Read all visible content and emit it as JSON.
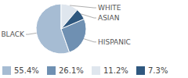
{
  "chart_data": {
    "type": "pie",
    "categories": [
      "BLACK",
      "HISPANIC",
      "WHITE",
      "ASIAN"
    ],
    "values": [
      55.4,
      26.1,
      11.2,
      7.3
    ],
    "value_labels": [
      "55.4%",
      "26.1%",
      "11.2%",
      "7.3%"
    ],
    "colors": [
      "#a6bcd3",
      "#6f90b2",
      "#dfe6ee",
      "#2f587f"
    ],
    "legend": "bottom"
  }
}
